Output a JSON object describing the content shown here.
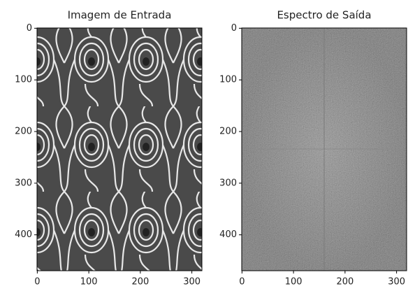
{
  "chart_data": [
    {
      "type": "image",
      "title": "Imagem de Entrada",
      "xlim": [
        -0.5,
        319.5
      ],
      "ylim": [
        469.5,
        -0.5
      ],
      "xticks": [
        0,
        100,
        200,
        300
      ],
      "yticks": [
        0,
        100,
        200,
        300,
        400
      ]
    },
    {
      "type": "image",
      "title": "Espectro de Saída",
      "xlim": [
        -0.5,
        319.5
      ],
      "ylim": [
        469.5,
        -0.5
      ],
      "xticks": [
        0,
        100,
        200,
        300
      ],
      "yticks": [
        0,
        100,
        200,
        300,
        400
      ]
    }
  ]
}
